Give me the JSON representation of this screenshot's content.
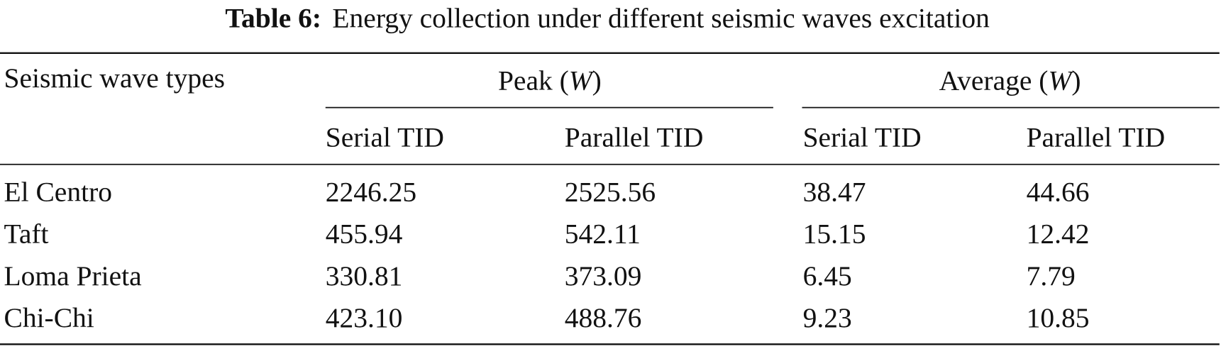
{
  "caption": {
    "label": "Table 6:",
    "text": "Energy collection under different seismic waves excitation"
  },
  "table": {
    "header": {
      "row_label": "Seismic wave types",
      "groups": [
        {
          "runs": [
            "Peak (",
            "W",
            ")"
          ],
          "columns": [
            "Serial TID",
            "Parallel TID"
          ]
        },
        {
          "runs": [
            "Average (",
            "W",
            ")"
          ],
          "columns": [
            "Serial TID",
            "Parallel TID"
          ]
        }
      ]
    },
    "rows": [
      [
        "El Centro",
        "2246.25",
        "2525.56",
        "38.47",
        "44.66"
      ],
      [
        "Taft",
        "455.94",
        "542.11",
        "15.15",
        "12.42"
      ],
      [
        "Loma Prieta",
        "330.81",
        "373.09",
        "6.45",
        "7.79"
      ],
      [
        "Chi-Chi",
        "423.10",
        "488.76",
        "9.23",
        "10.85"
      ]
    ]
  }
}
